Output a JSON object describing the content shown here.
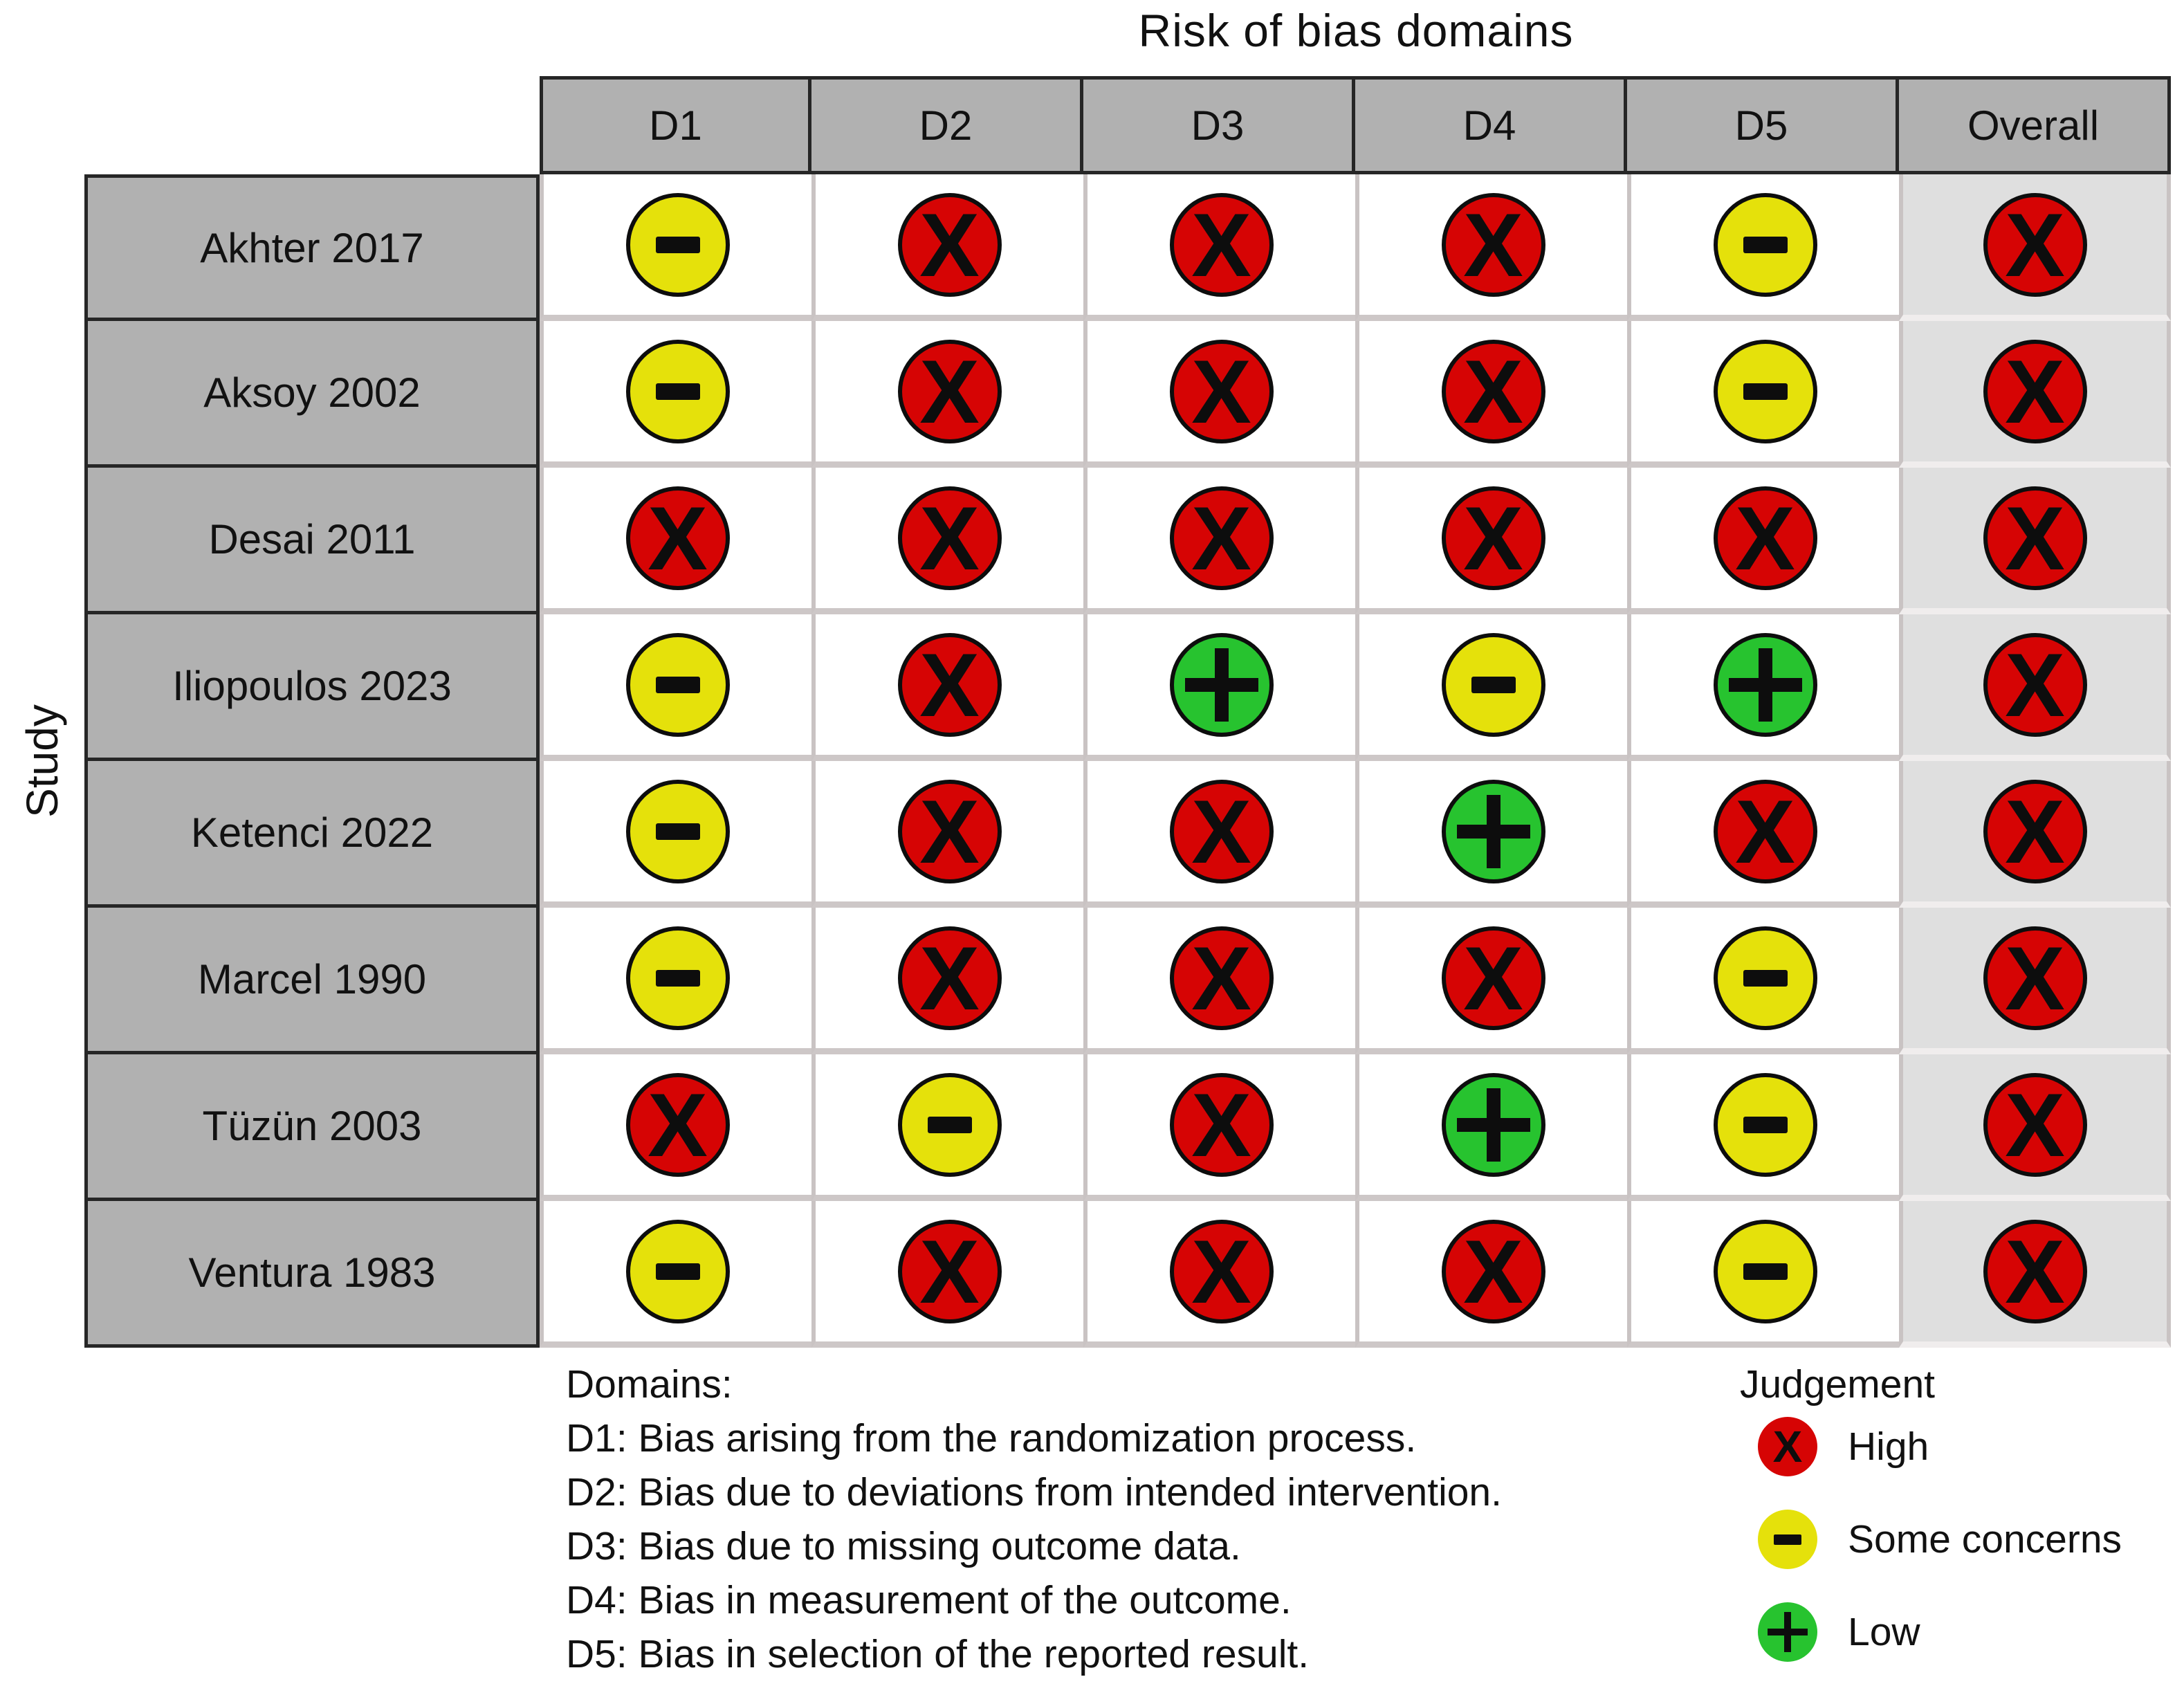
{
  "chart_data": {
    "type": "table",
    "title": "Risk of bias domains",
    "row_axis_label": "Study",
    "columns": [
      "D1",
      "D2",
      "D3",
      "D4",
      "D5",
      "Overall"
    ],
    "rows": [
      {
        "study": "Akhter 2017",
        "ratings": [
          "some_concerns",
          "high",
          "high",
          "high",
          "some_concerns",
          "high"
        ]
      },
      {
        "study": "Aksoy 2002",
        "ratings": [
          "some_concerns",
          "high",
          "high",
          "high",
          "some_concerns",
          "high"
        ]
      },
      {
        "study": "Desai 2011",
        "ratings": [
          "high",
          "high",
          "high",
          "high",
          "high",
          "high"
        ]
      },
      {
        "study": "Iliopoulos 2023",
        "ratings": [
          "some_concerns",
          "high",
          "low",
          "some_concerns",
          "low",
          "high"
        ]
      },
      {
        "study": "Ketenci 2022",
        "ratings": [
          "some_concerns",
          "high",
          "high",
          "low",
          "high",
          "high"
        ]
      },
      {
        "study": "Marcel 1990",
        "ratings": [
          "some_concerns",
          "high",
          "high",
          "high",
          "some_concerns",
          "high"
        ]
      },
      {
        "study": "Tüzün 2003",
        "ratings": [
          "high",
          "some_concerns",
          "high",
          "low",
          "some_concerns",
          "high"
        ]
      },
      {
        "study": "Ventura 1983",
        "ratings": [
          "some_concerns",
          "high",
          "high",
          "high",
          "some_concerns",
          "high"
        ]
      }
    ],
    "judgement_key": {
      "high": {
        "label": "High",
        "symbol": "x",
        "color": "#d60404"
      },
      "some_concerns": {
        "label": "Some concerns",
        "symbol": "minus",
        "color": "#e5e10b"
      },
      "low": {
        "label": "Low",
        "symbol": "plus",
        "color": "#27c32f"
      }
    }
  },
  "footnote": {
    "heading": "Domains:",
    "lines": [
      "D1: Bias arising from the randomization process.",
      "D2: Bias due to deviations from intended intervention.",
      "D3: Bias due to missing outcome data.",
      "D4: Bias in measurement of the outcome.",
      "D5: Bias in selection of the reported result."
    ]
  },
  "legend": {
    "title": "Judgement",
    "items": [
      "high",
      "some_concerns",
      "low"
    ]
  },
  "colors": {
    "header_bg": "#b1b1b1",
    "row_label_bg": "#b1b1b1",
    "overall_col_bg": "#dfdfdf",
    "grid_dark": "#262626",
    "grid_light": "#c9c3c3",
    "panel_bg": "#ffffff"
  }
}
